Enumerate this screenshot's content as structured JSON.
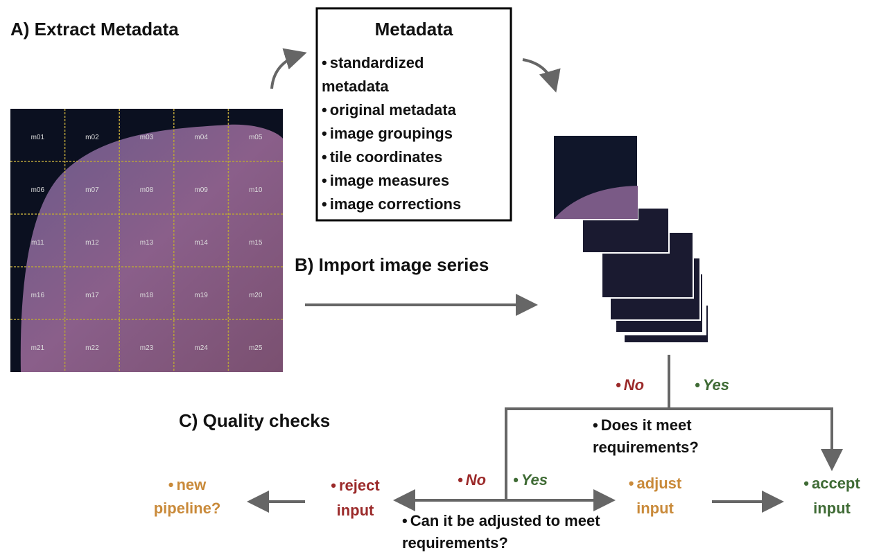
{
  "sections": {
    "a": "A)  Extract Metadata",
    "b": "B)  Import image series",
    "c": "C)  Quality checks"
  },
  "metadata": {
    "title": "Metadata",
    "items": [
      "standardized metadata",
      "original metadata",
      "image groupings",
      "tile coordinates",
      "image measures",
      "image corrections"
    ]
  },
  "tiles": [
    "m01",
    "m02",
    "m03",
    "m04",
    "m05",
    "m06",
    "m07",
    "m08",
    "m09",
    "m10",
    "m11",
    "m12",
    "m13",
    "m14",
    "m15",
    "m16",
    "m17",
    "m18",
    "m19",
    "m20",
    "m21",
    "m22",
    "m23",
    "m24",
    "m25"
  ],
  "flow": {
    "no_1": "No",
    "yes_1": "Yes",
    "question_1": "Does it meet requirements?",
    "no_2": "No",
    "yes_2": "Yes",
    "question_2": "Can it be adjusted to meet requirements?",
    "new_pipeline": "new pipeline?",
    "reject": "reject input",
    "adjust": "adjust input",
    "accept": "accept input"
  }
}
